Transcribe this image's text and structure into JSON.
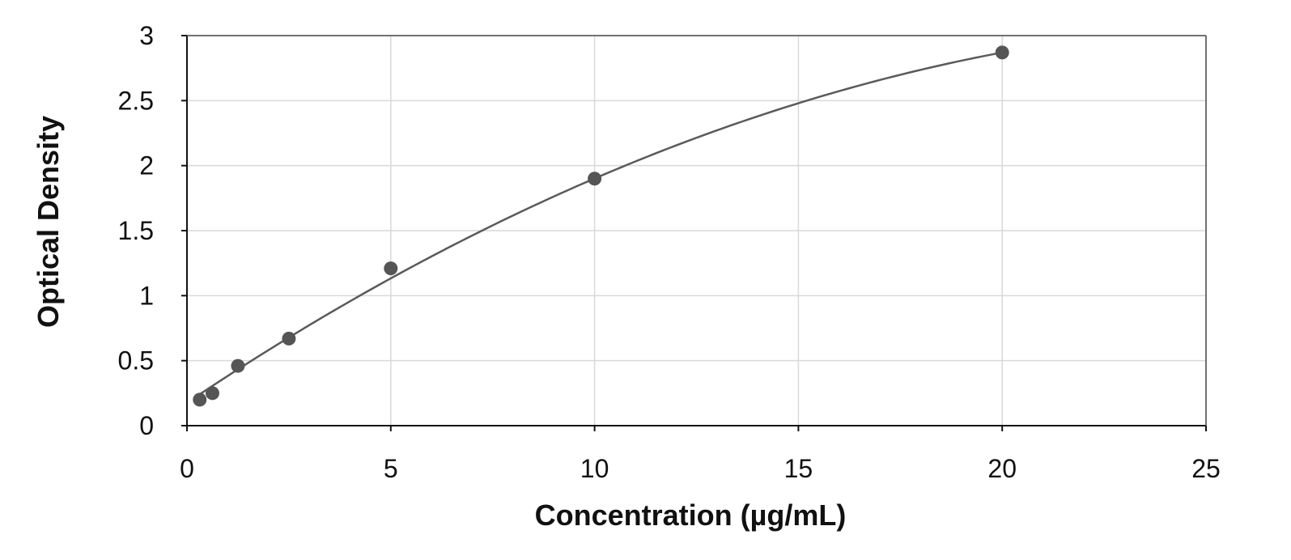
{
  "chart_data": {
    "type": "scatter",
    "title": "",
    "xlabel": "Concentration (µg/mL)",
    "ylabel": "Optical Density",
    "xlim": [
      0,
      25
    ],
    "ylim": [
      0,
      3
    ],
    "x_ticks": [
      0,
      5,
      10,
      15,
      20,
      25
    ],
    "y_ticks": [
      0,
      0.5,
      1,
      1.5,
      2,
      2.5,
      3
    ],
    "x_tick_labels": [
      "0",
      "5",
      "10",
      "15",
      "20",
      "25"
    ],
    "y_tick_labels": [
      "0",
      "0.5",
      "1",
      "1.5",
      "2",
      "2.5",
      "3"
    ],
    "grid": true,
    "legend": "none",
    "series": [
      {
        "x": [
          0.313,
          0.625,
          1.25,
          2.5,
          5,
          10,
          20
        ],
        "y": [
          0.2,
          0.25,
          0.46,
          0.67,
          1.21,
          1.9,
          2.87
        ]
      }
    ],
    "fit_curve": {
      "type": "polynomial",
      "coefficients": [
        0.176,
        0.2103,
        -0.00378
      ],
      "x_range": [
        0.313,
        20
      ]
    },
    "colors": {
      "points": "#555555",
      "curve": "#5a5a5a",
      "grid": "#d9d9d9",
      "axis": "#111111"
    }
  }
}
